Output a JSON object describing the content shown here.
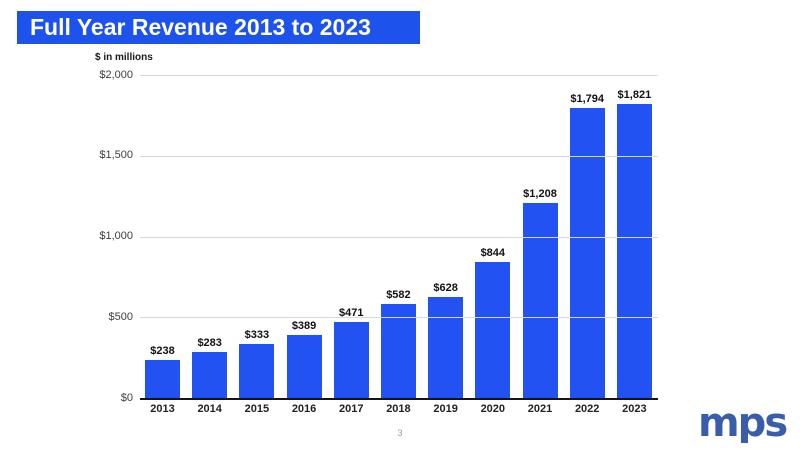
{
  "title": {
    "text": "Full Year Revenue 2013 to 2023"
  },
  "page": {
    "page_number": "3"
  },
  "logo": {
    "text": "mps",
    "alt": "MPS company logo"
  },
  "colors": {
    "banner_blue": "#1d52ec",
    "bar_blue": "#2352f2",
    "logo_blue": "#3a5dab",
    "gridline_gray": "#d9d9d9",
    "axis_black": "#141414"
  },
  "chart_data": {
    "type": "bar",
    "title": "Full Year Revenue 2013 to 2023",
    "units_label": "$ in millions",
    "categories": [
      "2013",
      "2014",
      "2015",
      "2016",
      "2017",
      "2018",
      "2019",
      "2020",
      "2021",
      "2022",
      "2023"
    ],
    "values": [
      238,
      283,
      333,
      389,
      471,
      582,
      628,
      844,
      1208,
      1794,
      1821
    ],
    "value_labels": [
      "$238",
      "$283",
      "$333",
      "$389",
      "$471",
      "$582",
      "$628",
      "$844",
      "$1,208",
      "$1,794",
      "$1,821"
    ],
    "xlabel": "",
    "ylabel": "$ in millions",
    "ylim": [
      0,
      2000
    ],
    "y_ticks": [
      {
        "value": 0,
        "label": "$0"
      },
      {
        "value": 500,
        "label": "$500"
      },
      {
        "value": 1000,
        "label": "$1,000"
      },
      {
        "value": 1500,
        "label": "$1,500"
      },
      {
        "value": 2000,
        "label": "$2,000"
      }
    ],
    "grid": true,
    "legend": false
  }
}
